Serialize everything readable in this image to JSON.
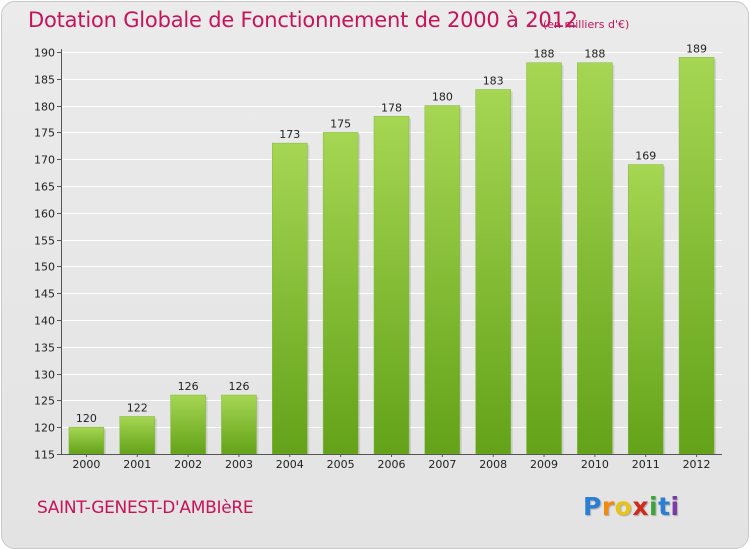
{
  "chart_data": {
    "type": "bar",
    "title": "Dotation Globale de Fonctionnement de 2000 à 2012",
    "unit_note": "(en milliers d'€)",
    "categories": [
      "2000",
      "2001",
      "2002",
      "2003",
      "2004",
      "2005",
      "2006",
      "2007",
      "2008",
      "2009",
      "2010",
      "2011",
      "2012"
    ],
    "values": [
      120,
      122,
      126,
      126,
      173,
      175,
      178,
      180,
      183,
      188,
      188,
      169,
      189
    ],
    "ylim": [
      115,
      190
    ],
    "yticks": [
      115,
      120,
      125,
      130,
      135,
      140,
      145,
      150,
      155,
      160,
      165,
      170,
      175,
      180,
      185,
      190
    ],
    "xlabel": "",
    "ylabel": "",
    "grid": true
  },
  "commune": "SAINT-GENEST-D'AMBIèRE",
  "logo": {
    "letters": [
      "P",
      "r",
      "o",
      "x",
      "i",
      "t",
      "i"
    ],
    "colors": [
      "#2a7fd4",
      "#f08a0c",
      "#e8c31a",
      "#d02a1c",
      "#3aa33a",
      "#2a7fd4",
      "#7a3aa8"
    ]
  },
  "colors": {
    "title": "#c8135a",
    "bar_light": "#a6d653",
    "bar_dark": "#63a219",
    "grid": "#ffffff",
    "axis": "#555555"
  }
}
